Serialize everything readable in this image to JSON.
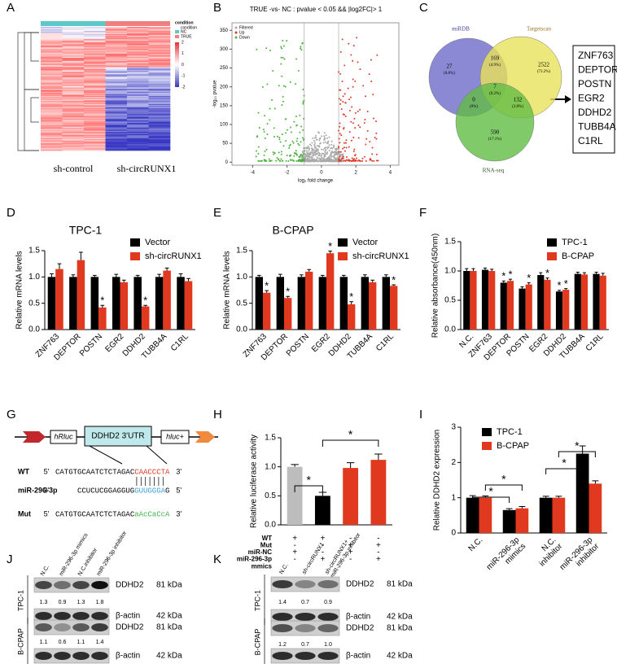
{
  "panel_a": {
    "letter": "A",
    "columns": [
      "sh-control",
      "sh-circRUNX1"
    ],
    "legend_title": "condition",
    "legend_subtitle": "condition",
    "legend_items": [
      {
        "name": "NC",
        "color": "#5ec8c8"
      },
      {
        "name": "TRUE",
        "color": "#f08080"
      }
    ],
    "scale_ticks": [
      2,
      1,
      0,
      -1,
      -2
    ]
  },
  "panel_b": {
    "letter": "B",
    "type": "scatter",
    "title": "TRUE -vs- NC : pvalue < 0.05 && |log2FC|> 1",
    "xlabel": "log₂ fold change",
    "ylabel": "-log₁₀ pvalue",
    "xlim": [
      -5.2,
      4.5
    ],
    "xticks": [
      -4,
      -2,
      0,
      2,
      4
    ],
    "ylim": [
      -8,
      370
    ],
    "yticks": [
      0,
      50,
      100,
      150,
      200,
      250,
      300,
      350
    ],
    "legend": [
      {
        "name": "Filtered",
        "color": "#aaaaaa"
      },
      {
        "name": "Up",
        "color": "#e0392b"
      },
      {
        "name": "Down",
        "color": "#4bb43c"
      }
    ]
  },
  "panel_c": {
    "letter": "C",
    "sets": [
      "miRDB",
      "Targetscan",
      "RNA-seq"
    ],
    "regions": [
      {
        "count": 27,
        "pct": "(0.8%)"
      },
      {
        "count": 169,
        "pct": "(4.9%)"
      },
      {
        "count": 2522,
        "pct": "(73.2%)"
      },
      {
        "count": 7,
        "pct": "(0.2%)"
      },
      {
        "count": 0,
        "pct": "(0%)"
      },
      {
        "count": 132,
        "pct": "(3.8%)"
      },
      {
        "count": 590,
        "pct": "(17.1%)"
      }
    ],
    "genes": [
      "ZNF763",
      "DEPTOR",
      "POSTN",
      "EGR2",
      "DDHD2",
      "TUBB4A",
      "C1RL"
    ]
  },
  "panel_d": {
    "letter": "D",
    "type": "bar",
    "title": "TPC-1",
    "ylabel": "Relative  mRNA levels",
    "categories": [
      "ZNF763",
      "DEPTOR",
      "POSTN",
      "EGR2",
      "DDHD2",
      "TUBB4A",
      "C1RL"
    ],
    "ylim": [
      0,
      1.5
    ],
    "yticks": [
      {
        "value": 0,
        "label": "0.0"
      },
      {
        "value": 0.5,
        "label": "0.5"
      },
      {
        "value": 1,
        "label": "1.0"
      },
      {
        "value": 1.5,
        "label": "1.5"
      }
    ],
    "series": [
      {
        "name": "Vector",
        "color": "#000000",
        "values": [
          1,
          1,
          1,
          1,
          1,
          1,
          1
        ],
        "errors": [
          0.06,
          0.04,
          0.03,
          0.05,
          0.03,
          0.05,
          0.06
        ],
        "annotations": [
          null,
          null,
          null,
          null,
          null,
          null,
          null
        ]
      },
      {
        "name": "sh-circRUNX1",
        "color": "#e0391f",
        "values": [
          1.15,
          1.32,
          0.42,
          0.9,
          0.44,
          1.12,
          0.92
        ],
        "errors": [
          0.1,
          0.15,
          0.04,
          0.04,
          0.02,
          0.05,
          0.05
        ],
        "annotations": [
          null,
          null,
          "*",
          null,
          "*",
          null,
          null
        ]
      }
    ]
  },
  "panel_e": {
    "letter": "E",
    "type": "bar",
    "title": "B-CPAP",
    "ylabel": "Relative  mRNA levels",
    "categories": [
      "ZNF763",
      "DEPTOR",
      "POSTN",
      "EGR2",
      "DDHD2",
      "TUBB4A",
      "C1RL"
    ],
    "ylim": [
      0,
      1.5
    ],
    "yticks": [
      {
        "value": 0,
        "label": "0.0"
      },
      {
        "value": 0.5,
        "label": "0.5"
      },
      {
        "value": 1,
        "label": "1.0"
      },
      {
        "value": 1.5,
        "label": "1.5"
      }
    ],
    "series": [
      {
        "name": "Vector",
        "color": "#000000",
        "values": [
          1,
          1,
          1,
          1,
          1,
          1,
          1
        ],
        "errors": [
          0.03,
          0.05,
          0.04,
          0.03,
          0.03,
          0.04,
          0.04
        ],
        "annotations": [
          null,
          null,
          null,
          null,
          null,
          null,
          null
        ]
      },
      {
        "name": "sh-circRUNX1",
        "color": "#e0391f",
        "values": [
          0.7,
          0.6,
          1.1,
          1.45,
          0.48,
          0.9,
          0.83
        ],
        "errors": [
          0.04,
          0.03,
          0.04,
          0.04,
          0.05,
          0.04,
          0.02
        ],
        "annotations": [
          "*",
          "*",
          null,
          "*",
          "*",
          null,
          "*"
        ]
      }
    ]
  },
  "panel_f": {
    "letter": "F",
    "type": "bar",
    "ylabel": "Relative absorbance(450nm)",
    "categories": [
      "N.C.",
      "ZNF763",
      "DEPTOR",
      "POSTN",
      "EGR2",
      "DDHD2",
      "TUBB4A",
      "C1RL"
    ],
    "ylim": [
      0,
      1.5
    ],
    "yticks": [
      {
        "value": 0,
        "label": "0.0"
      },
      {
        "value": 0.5,
        "label": "0.5"
      },
      {
        "value": 1,
        "label": "1.0"
      },
      {
        "value": 1.5,
        "label": "1.5"
      }
    ],
    "series": [
      {
        "name": "TPC-1",
        "color": "#000000",
        "values": [
          1,
          1.02,
          0.8,
          0.7,
          0.93,
          0.65,
          0.95,
          0.95
        ],
        "errors": [
          0.04,
          0.03,
          0.03,
          0.03,
          0.04,
          0.02,
          0.03,
          0.03
        ],
        "annotations": [
          null,
          null,
          "*",
          null,
          null,
          "*",
          null,
          null
        ]
      },
      {
        "name": "B-CPAP",
        "color": "#e0391f",
        "values": [
          1,
          1,
          0.83,
          0.77,
          0.85,
          0.68,
          0.94,
          0.92
        ],
        "errors": [
          0.04,
          0.03,
          0.03,
          0.03,
          0.03,
          0.02,
          0.03,
          0.04
        ],
        "annotations": [
          null,
          null,
          "*",
          "*",
          "*",
          "*",
          null,
          null
        ]
      }
    ]
  },
  "panel_g": {
    "letter": "G",
    "elements": [
      "hRluc",
      "DDHD2 3'UTR",
      "hluc+"
    ],
    "rows": [
      {
        "label": "WT",
        "left": "5'",
        "right": "3'",
        "parts": [
          {
            "text": "CATGTGCAATCTCTAGAC",
            "color": "#000000"
          },
          {
            "text": "CAACCCTA",
            "color": "#e0391f"
          }
        ]
      },
      {
        "label": "miR-296-3p",
        "left": "3'",
        "right": "5'",
        "parts": [
          {
            "text": "CCUCUCGGAGGUG",
            "color": "#000000"
          },
          {
            "text": "GUUGGGA",
            "color": "#3aa0d8"
          },
          {
            "text": "G",
            "color": "#000000"
          }
        ]
      },
      {
        "label": "Mut",
        "left": "5'",
        "right": "3'",
        "parts": [
          {
            "text": "CATGTGCAATCTCTAGAC",
            "color": "#000000"
          },
          {
            "text": "aAcCaCcA",
            "color": "#3fb54a"
          }
        ]
      }
    ]
  },
  "panel_h": {
    "letter": "H",
    "type": "bar",
    "ylabel": "Relative luciferase activity",
    "ylim": [
      0,
      1.5
    ],
    "yticks": [
      {
        "value": 0,
        "label": "0.0"
      },
      {
        "value": 0.5,
        "label": "0.5"
      },
      {
        "value": 1,
        "label": "1.0"
      },
      {
        "value": 1.5,
        "label": "1.5"
      }
    ],
    "series": [
      {
        "values": [
          1,
          0.5,
          0.98,
          1.12
        ],
        "errors": [
          0.04,
          0.06,
          0.09,
          0.1
        ],
        "colors": [
          "#bdbdbd",
          "#000000",
          "#e0391f",
          "#e0391f"
        ]
      }
    ],
    "brackets": [
      "*",
      "*"
    ],
    "conditions": [
      {
        "label": [
          "WT"
        ],
        "signs": [
          "+",
          "+",
          "-",
          "-"
        ]
      },
      {
        "label": [
          "Mut"
        ],
        "signs": [
          "-",
          "-",
          "+",
          "+"
        ]
      },
      {
        "label": [
          "miR-NC"
        ],
        "signs": [
          "+",
          "-",
          "+",
          "-"
        ]
      },
      {
        "label": [
          "miR-296-3p",
          "mmics"
        ],
        "signs": [
          "-",
          "+",
          "-",
          "+"
        ]
      }
    ]
  },
  "panel_i": {
    "letter": "I",
    "type": "bar",
    "ylabel": "Relative DDHD2 expression",
    "categories": [
      [
        "N.C."
      ],
      [
        "miR-296-3p",
        "mimics"
      ],
      [
        "N.C.",
        "inhibitor"
      ],
      [
        "miR-296-3p",
        "inhibitor"
      ]
    ],
    "ylim": [
      0,
      3
    ],
    "yticks": [
      0,
      1,
      2,
      3
    ],
    "series": [
      {
        "name": "TPC-1",
        "color": "#000000",
        "values": [
          1,
          0.65,
          1,
          2.25
        ],
        "errors": [
          0.06,
          0.04,
          0.04,
          0.22
        ],
        "annotations": [
          null,
          null,
          null,
          null
        ]
      },
      {
        "name": "B-CPAP",
        "color": "#e0391f",
        "values": [
          1,
          0.7,
          1,
          1.4
        ],
        "errors": [
          0.05,
          0.05,
          0.04,
          0.08
        ],
        "annotations": [
          null,
          null,
          null,
          null
        ]
      }
    ],
    "brackets": [
      "*",
      "*",
      "*",
      "*"
    ]
  },
  "panel_j": {
    "letter": "J",
    "lanes": [
      [
        "N.C."
      ],
      [
        "miR-296-3p mimics"
      ],
      [
        "N.C.inhibitor"
      ],
      [
        "miR-296-3p inhibitor"
      ]
    ],
    "blots": [
      {
        "cell": "TPC-1",
        "protein": "DDHD2",
        "size": "81 kDa",
        "quant": [
          1.3,
          0.9,
          1.3,
          1.8
        ],
        "control": "β-actin",
        "control_size": "42 kDa"
      },
      {
        "cell": "B-CPAP",
        "protein": "DDHD2",
        "size": "81 kDa",
        "quant": [
          1.1,
          0.6,
          1.1,
          1.4
        ],
        "control": "β-actin",
        "control_size": "42 kDa"
      }
    ]
  },
  "panel_k": {
    "letter": "K",
    "lanes": [
      [
        "N.C."
      ],
      [
        "sh-circRUNX1"
      ],
      [
        "sh-circRUNX1+",
        "miR-296-3p inhibitor"
      ]
    ],
    "blots": [
      {
        "cell": "TPC-1",
        "protein": "DDHD2",
        "size": "81 kDa",
        "quant": [
          1.4,
          0.7,
          0.9
        ],
        "control": "β-actin",
        "control_size": "42 kDa"
      },
      {
        "cell": "B-CPAP",
        "protein": "DDHD2",
        "size": "81 kDa",
        "quant": [
          1.2,
          0.7,
          {
            "value": 1,
            "label": "1.0"
          }
        ],
        "control": "β-actin",
        "control_size": "42 kDa"
      }
    ]
  }
}
